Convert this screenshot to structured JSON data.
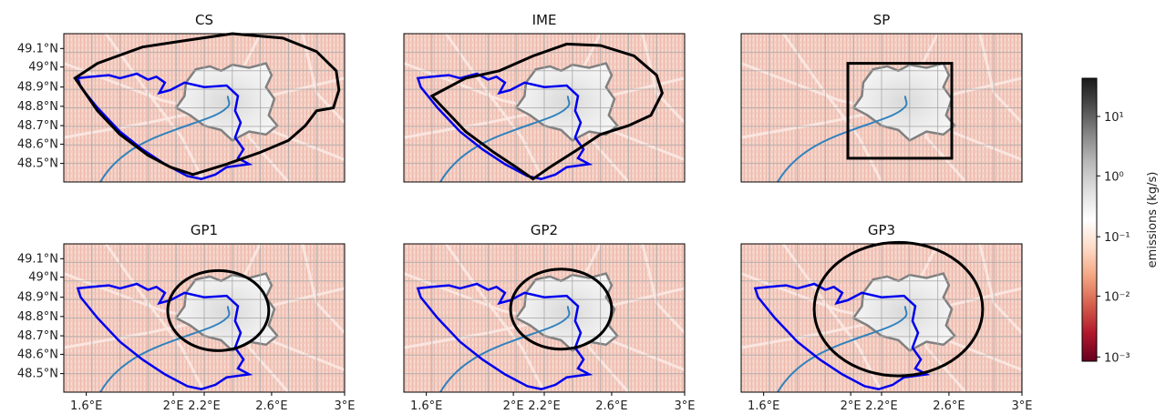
{
  "figure": {
    "panels": [
      {
        "title": "CS",
        "domain": "cs"
      },
      {
        "title": "IME",
        "domain": "ime"
      },
      {
        "title": "SP",
        "domain": "sp"
      },
      {
        "title": "GP1",
        "domain": "gp1"
      },
      {
        "title": "GP2",
        "domain": "gp2"
      },
      {
        "title": "GP3",
        "domain": "gp3"
      }
    ],
    "lat_ticks": [
      "49.1°N",
      "49°N",
      "48.9°N",
      "48.8°N",
      "48.7°N",
      "48.6°N",
      "48.5°N"
    ],
    "lon_ticks": [
      "1.6°E",
      "2°E",
      "2.2°E",
      "2.6°E",
      "3°E"
    ],
    "colorbar": {
      "label": "emissions (kg/s)",
      "ticks": [
        "10¹",
        "10⁰",
        "10⁻¹",
        "10⁻²",
        "10⁻³"
      ],
      "colormap": [
        "#67001f",
        "#b2182b",
        "#d6604d",
        "#f4a582",
        "#fddbc7",
        "#ffffff",
        "#e0e0e0",
        "#bababa",
        "#878787",
        "#4d4d4d",
        "#1a1a1a"
      ]
    },
    "colors": {
      "background_heatmap": "#f2c6ba",
      "city_fill": "#f0f0f0",
      "city_outline": "#808080",
      "region_outline": "#0000ee",
      "river": "#3182bd",
      "domain_outline": "#000000",
      "grid": "#a8a8a8"
    }
  }
}
